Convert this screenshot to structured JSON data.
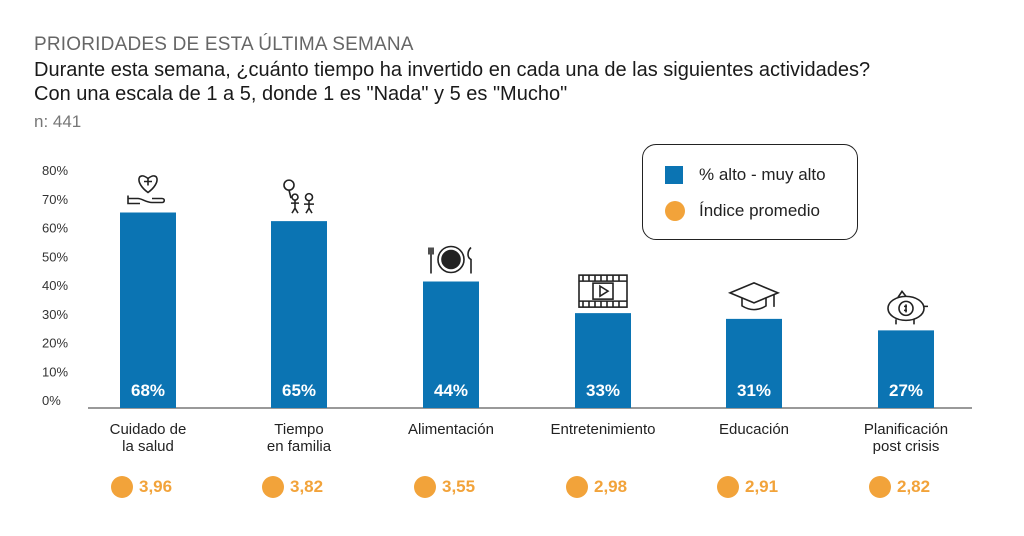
{
  "header": {
    "kicker": "PRIORIDADES DE ESTA ÚLTIMA SEMANA",
    "question_line1": "Durante esta semana, ¿cuánto tiempo ha invertido en cada una de las siguientes actividades?",
    "question_line2": "Con una escala de 1 a 5, donde 1 es \"Nada\" y 5 es \"Mucho\"",
    "sample": "n: 441"
  },
  "legend": {
    "bar_label": "% alto - muy alto",
    "dot_label": "Índice promedio"
  },
  "colors": {
    "bar": "#0b74b3",
    "dot": "#f2a33a"
  },
  "chart_data": {
    "type": "bar",
    "categories": [
      [
        "Cuidado de",
        "la salud"
      ],
      [
        "Tiempo",
        "en familia"
      ],
      [
        "Alimentación"
      ],
      [
        "Entretenimiento"
      ],
      [
        "Educación"
      ],
      [
        "Planificación",
        "post crisis"
      ]
    ],
    "series": [
      {
        "name": "% alto - muy alto",
        "values": [
          68,
          65,
          44,
          33,
          31,
          27
        ],
        "labels": [
          "68%",
          "65%",
          "44%",
          "33%",
          "31%",
          "27%"
        ]
      },
      {
        "name": "Índice promedio",
        "values": [
          3.96,
          3.82,
          3.55,
          2.98,
          2.91,
          2.82
        ],
        "labels": [
          "3,96",
          "3,82",
          "3,55",
          "2,98",
          "2,91",
          "2,82"
        ]
      }
    ],
    "icons": [
      "heart-hand-icon",
      "family-icon",
      "plate-cutlery-icon",
      "film-play-icon",
      "graduation-cap-icon",
      "piggy-bank-icon"
    ],
    "yticks": [
      "0%",
      "10%",
      "20%",
      "30%",
      "40%",
      "50%",
      "60%",
      "70%",
      "80%"
    ],
    "ylim": [
      0,
      80
    ],
    "grid": false
  }
}
